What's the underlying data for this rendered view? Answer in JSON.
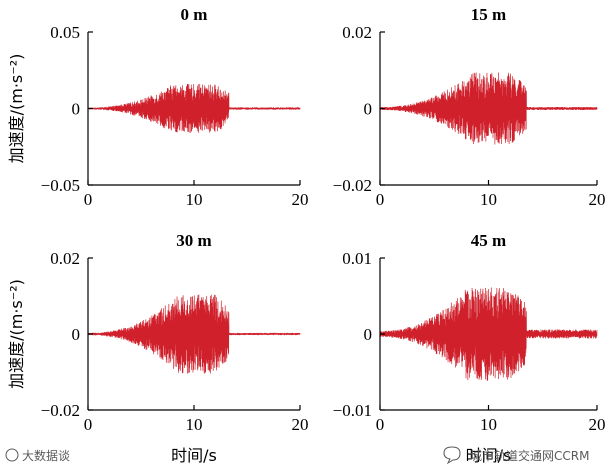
{
  "chart_data": [
    {
      "type": "line",
      "title": "0 m",
      "xlabel": "",
      "ylabel": "加速度/(m·s⁻²)",
      "xlim": [
        0,
        20
      ],
      "ylim": [
        -0.05,
        0.05
      ],
      "xticks": [
        "0",
        "10",
        "20"
      ],
      "yticks": [
        "-0.05",
        "0",
        "0.05"
      ],
      "color": "#d0202b",
      "envelope": {
        "start": 0,
        "rise_end": 8,
        "fall_start": 12,
        "cutoff": 13.3,
        "end": 20,
        "peak": 0.016,
        "base": 0.0006,
        "tail": 0.0008
      }
    },
    {
      "type": "line",
      "title": "15 m",
      "xlabel": "",
      "ylabel": "",
      "xlim": [
        0,
        20
      ],
      "ylim": [
        -0.02,
        0.02
      ],
      "xticks": [
        "0",
        "10",
        "20"
      ],
      "yticks": [
        "-0.02",
        "0",
        "0.02"
      ],
      "color": "#d0202b",
      "envelope": {
        "start": 0,
        "rise_end": 8.5,
        "fall_start": 12,
        "cutoff": 13.5,
        "end": 20,
        "peak": 0.0095,
        "base": 0.0004,
        "tail": 0.0004
      }
    },
    {
      "type": "line",
      "title": "30 m",
      "xlabel": "时间/s",
      "ylabel": "加速度/(m·s⁻²)",
      "xlim": [
        0,
        20
      ],
      "ylim": [
        -0.02,
        0.02
      ],
      "xticks": [
        "0",
        "10",
        "20"
      ],
      "yticks": [
        "-0.02",
        "0",
        "0.02"
      ],
      "color": "#d0202b",
      "envelope": {
        "start": 0,
        "rise_end": 8.5,
        "fall_start": 12,
        "cutoff": 13.3,
        "end": 20,
        "peak": 0.0105,
        "base": 0.0003,
        "tail": 0.0003
      }
    },
    {
      "type": "line",
      "title": "45 m",
      "xlabel": "时间/s",
      "ylabel": "",
      "xlim": [
        0,
        20
      ],
      "ylim": [
        -0.01,
        0.01
      ],
      "xticks": [
        "0",
        "10",
        "20"
      ],
      "yticks": [
        "-0.01",
        "0",
        "0.01"
      ],
      "color": "#d0202b",
      "envelope": {
        "start": 0,
        "rise_end": 8,
        "fall_start": 12,
        "cutoff": 13.5,
        "end": 20,
        "peak": 0.0062,
        "base": 0.0004,
        "tail": 0.0006
      }
    }
  ],
  "watermarks": {
    "bottom_left": "大数据谈",
    "bottom_right": "城市轨道交通网CCRM"
  }
}
